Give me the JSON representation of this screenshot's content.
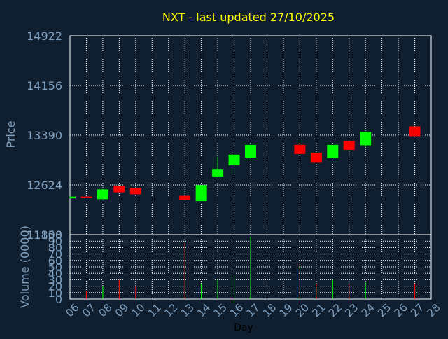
{
  "colors": {
    "background": "#0f1f2f",
    "plot_background": "#0f1f2f",
    "axis_text": "#7f9fbf",
    "title": "#ffff00",
    "up": "#00ff00",
    "down": "#ff0000",
    "grid": "#ffffff",
    "xlabel": "#000000"
  },
  "chart_data": [
    {
      "type": "candlestick",
      "title": "NXT - last updated 27/10/2025",
      "ylabel": "Price",
      "ylim": [
        11858,
        14922
      ],
      "yticks": [
        11858,
        12624,
        13390,
        14156,
        14922
      ],
      "xticks": [
        "06",
        "07",
        "08",
        "09",
        "10",
        "11",
        "12",
        "13",
        "14",
        "15",
        "16",
        "17",
        "18",
        "19",
        "20",
        "21",
        "22",
        "23",
        "24",
        "25",
        "26",
        "27",
        "28"
      ],
      "grid": true,
      "candles": [
        {
          "day": "06",
          "open": 12417,
          "close": 12445,
          "high": 12445,
          "low": 12417
        },
        {
          "day": "07",
          "open": 12445,
          "close": 12425,
          "high": 12445,
          "low": 12425
        },
        {
          "day": "08",
          "open": 12405,
          "close": 12555,
          "high": 12555,
          "low": 12405
        },
        {
          "day": "09",
          "open": 12610,
          "close": 12510,
          "high": 12610,
          "low": 12510
        },
        {
          "day": "10",
          "open": 12575,
          "close": 12480,
          "high": 12575,
          "low": 12480
        },
        {
          "day": "13",
          "open": 12455,
          "close": 12395,
          "high": 12455,
          "low": 12395
        },
        {
          "day": "14",
          "open": 12375,
          "close": 12620,
          "high": 12620,
          "low": 12375
        },
        {
          "day": "15",
          "open": 12755,
          "close": 12870,
          "high": 13060,
          "low": 12755
        },
        {
          "day": "16",
          "open": 12925,
          "close": 13090,
          "high": 13090,
          "low": 12800
        },
        {
          "day": "17",
          "open": 13045,
          "close": 13240,
          "high": 13240,
          "low": 13045
        },
        {
          "day": "20",
          "open": 13240,
          "close": 13100,
          "high": 13280,
          "low": 13100
        },
        {
          "day": "21",
          "open": 13120,
          "close": 12965,
          "high": 13120,
          "low": 12965
        },
        {
          "day": "22",
          "open": 13035,
          "close": 13240,
          "high": 13240,
          "low": 13035
        },
        {
          "day": "23",
          "open": 13300,
          "close": 13165,
          "high": 13300,
          "low": 13165
        },
        {
          "day": "24",
          "open": 13235,
          "close": 13440,
          "high": 13440,
          "low": 13210
        },
        {
          "day": "27",
          "open": 13525,
          "close": 13375,
          "high": 13525,
          "low": 13375
        }
      ]
    },
    {
      "type": "bar",
      "ylabel": "Volume (0000)",
      "xlabel": "Day",
      "ylim": [
        0,
        100
      ],
      "yticks": [
        0,
        10,
        20,
        30,
        40,
        50,
        60,
        70,
        80,
        90,
        100
      ],
      "bars": [
        {
          "day": "06",
          "value": 0,
          "direction": "up"
        },
        {
          "day": "07",
          "value": 12,
          "direction": "down"
        },
        {
          "day": "08",
          "value": 20,
          "direction": "up"
        },
        {
          "day": "09",
          "value": 30,
          "direction": "down"
        },
        {
          "day": "10",
          "value": 20,
          "direction": "down"
        },
        {
          "day": "13",
          "value": 88,
          "direction": "down"
        },
        {
          "day": "14",
          "value": 24,
          "direction": "up"
        },
        {
          "day": "15",
          "value": 30,
          "direction": "up"
        },
        {
          "day": "16",
          "value": 38,
          "direction": "up"
        },
        {
          "day": "17",
          "value": 97,
          "direction": "up"
        },
        {
          "day": "20",
          "value": 52,
          "direction": "down"
        },
        {
          "day": "21",
          "value": 24,
          "direction": "down"
        },
        {
          "day": "22",
          "value": 30,
          "direction": "up"
        },
        {
          "day": "23",
          "value": 22,
          "direction": "down"
        },
        {
          "day": "24",
          "value": 26,
          "direction": "up"
        },
        {
          "day": "27",
          "value": 24,
          "direction": "down"
        }
      ]
    }
  ]
}
